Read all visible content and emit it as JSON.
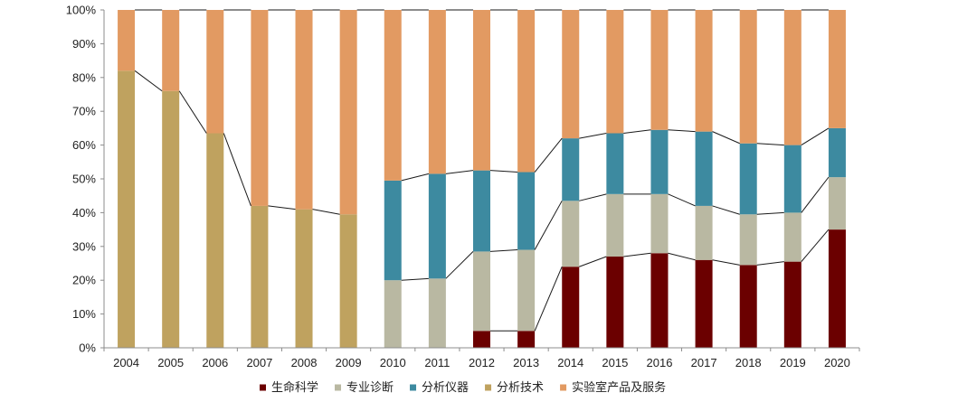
{
  "chart_data": {
    "type": "bar",
    "stacked": "percent",
    "categories": [
      "2004",
      "2005",
      "2006",
      "2007",
      "2008",
      "2009",
      "2010",
      "2011",
      "2012",
      "2013",
      "2014",
      "2015",
      "2016",
      "2017",
      "2018",
      "2019",
      "2020"
    ],
    "series": [
      {
        "name": "生命科学",
        "color": "#6b0000",
        "values": [
          0,
          0,
          0,
          0,
          0,
          0,
          0,
          0,
          5,
          5,
          24,
          27,
          28,
          26,
          24.5,
          25.5,
          35
        ]
      },
      {
        "name": "专业诊断",
        "color": "#b9b8a2",
        "values": [
          0,
          0,
          0,
          0,
          0,
          0,
          20,
          20.5,
          23.5,
          24,
          19.5,
          18.5,
          17.5,
          16,
          15,
          14.5,
          15.5
        ]
      },
      {
        "name": "分析仪器",
        "color": "#3d8aa0",
        "values": [
          0,
          0,
          0,
          0,
          0,
          0,
          29.5,
          31,
          24,
          23,
          18.5,
          18,
          19,
          22,
          21,
          20,
          14.5
        ]
      },
      {
        "name": "分析技术",
        "color": "#bfa25f",
        "values": [
          82,
          76,
          63.5,
          42,
          41,
          39.5,
          0,
          0,
          0,
          0,
          0,
          0,
          0,
          0,
          0,
          0,
          0
        ]
      },
      {
        "name": "实验室产品及服务",
        "color": "#e29a62",
        "values": [
          18,
          24,
          36.5,
          58,
          59,
          60.5,
          50.5,
          48.5,
          47.5,
          48,
          38,
          36.5,
          35.5,
          36,
          39.5,
          40,
          35
        ]
      }
    ],
    "y_ticks": [
      "0%",
      "10%",
      "20%",
      "30%",
      "40%",
      "50%",
      "60%",
      "70%",
      "80%",
      "90%",
      "100%"
    ],
    "ylim": [
      0,
      100
    ],
    "title": "",
    "xlabel": "",
    "ylabel": "",
    "legend_position": "bottom",
    "connector_lines": true
  }
}
